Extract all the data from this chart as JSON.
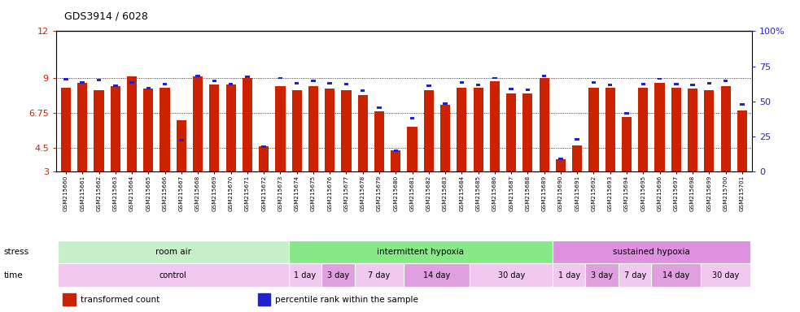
{
  "title": "GDS3914 / 6028",
  "samples": [
    "GSM215660",
    "GSM215661",
    "GSM215662",
    "GSM215663",
    "GSM215664",
    "GSM215665",
    "GSM215666",
    "GSM215667",
    "GSM215668",
    "GSM215669",
    "GSM215670",
    "GSM215671",
    "GSM215672",
    "GSM215673",
    "GSM215674",
    "GSM215675",
    "GSM215676",
    "GSM215677",
    "GSM215678",
    "GSM215679",
    "GSM215680",
    "GSM215681",
    "GSM215682",
    "GSM215683",
    "GSM215684",
    "GSM215685",
    "GSM215686",
    "GSM215687",
    "GSM215688",
    "GSM215689",
    "GSM215690",
    "GSM215691",
    "GSM215692",
    "GSM215693",
    "GSM215694",
    "GSM215695",
    "GSM215696",
    "GSM215697",
    "GSM215698",
    "GSM215699",
    "GSM215700",
    "GSM215701"
  ],
  "red_values": [
    8.4,
    8.7,
    8.2,
    8.5,
    9.1,
    8.3,
    8.4,
    6.3,
    9.1,
    8.6,
    8.6,
    9.0,
    4.6,
    8.5,
    8.2,
    8.5,
    8.3,
    8.2,
    7.9,
    6.85,
    4.35,
    5.9,
    8.2,
    7.3,
    8.35,
    8.35,
    8.8,
    8.0,
    8.0,
    9.0,
    3.8,
    4.7,
    8.4,
    8.4,
    6.5,
    8.4,
    8.7,
    8.4,
    8.3,
    8.2,
    8.5,
    6.9
  ],
  "blue_values": [
    8.9,
    8.7,
    8.85,
    8.5,
    8.7,
    8.35,
    8.6,
    5.0,
    9.15,
    8.8,
    8.6,
    9.1,
    4.6,
    9.0,
    8.65,
    8.8,
    8.65,
    8.6,
    8.2,
    7.1,
    4.35,
    6.4,
    8.5,
    7.35,
    8.7,
    8.55,
    9.0,
    8.3,
    8.25,
    9.15,
    3.8,
    5.05,
    8.7,
    8.55,
    6.75,
    8.6,
    8.95,
    8.6,
    8.55,
    8.65,
    8.8,
    7.3
  ],
  "ylim": [
    3,
    12
  ],
  "yticks": [
    3,
    4.5,
    6.75,
    9,
    12
  ],
  "ytick_labels": [
    "3",
    "4.5",
    "6.75",
    "9",
    "12"
  ],
  "right_yticks": [
    0,
    25,
    50,
    75,
    100
  ],
  "right_ytick_labels": [
    "0",
    "25",
    "50",
    "75",
    "100%"
  ],
  "bar_color": "#cc2200",
  "blue_color": "#2222cc",
  "bg_color": "#ffffff",
  "stress_groups": [
    {
      "label": "room air",
      "start": 0,
      "end": 14,
      "color": "#c8f0c8"
    },
    {
      "label": "intermittent hypoxia",
      "start": 14,
      "end": 30,
      "color": "#88e888"
    },
    {
      "label": "sustained hypoxia",
      "start": 30,
      "end": 42,
      "color": "#e090e0"
    }
  ],
  "time_groups": [
    {
      "label": "control",
      "start": 0,
      "end": 14,
      "color": "#f0c8f0"
    },
    {
      "label": "1 day",
      "start": 14,
      "end": 16,
      "color": "#f0c8f0"
    },
    {
      "label": "3 day",
      "start": 16,
      "end": 18,
      "color": "#e0a0e0"
    },
    {
      "label": "7 day",
      "start": 18,
      "end": 21,
      "color": "#f0c8f0"
    },
    {
      "label": "14 day",
      "start": 21,
      "end": 25,
      "color": "#e0a0e0"
    },
    {
      "label": "30 day",
      "start": 25,
      "end": 30,
      "color": "#f0c8f0"
    },
    {
      "label": "1 day",
      "start": 30,
      "end": 32,
      "color": "#f0c8f0"
    },
    {
      "label": "3 day",
      "start": 32,
      "end": 34,
      "color": "#e0a0e0"
    },
    {
      "label": "7 day",
      "start": 34,
      "end": 36,
      "color": "#f0c8f0"
    },
    {
      "label": "14 day",
      "start": 36,
      "end": 39,
      "color": "#e0a0e0"
    },
    {
      "label": "30 day",
      "start": 39,
      "end": 42,
      "color": "#f0c8f0"
    }
  ],
  "stress_label": "stress",
  "time_label": "time",
  "legend_items": [
    {
      "label": "transformed count",
      "color": "#cc2200"
    },
    {
      "label": "percentile rank within the sample",
      "color": "#2222cc"
    }
  ]
}
